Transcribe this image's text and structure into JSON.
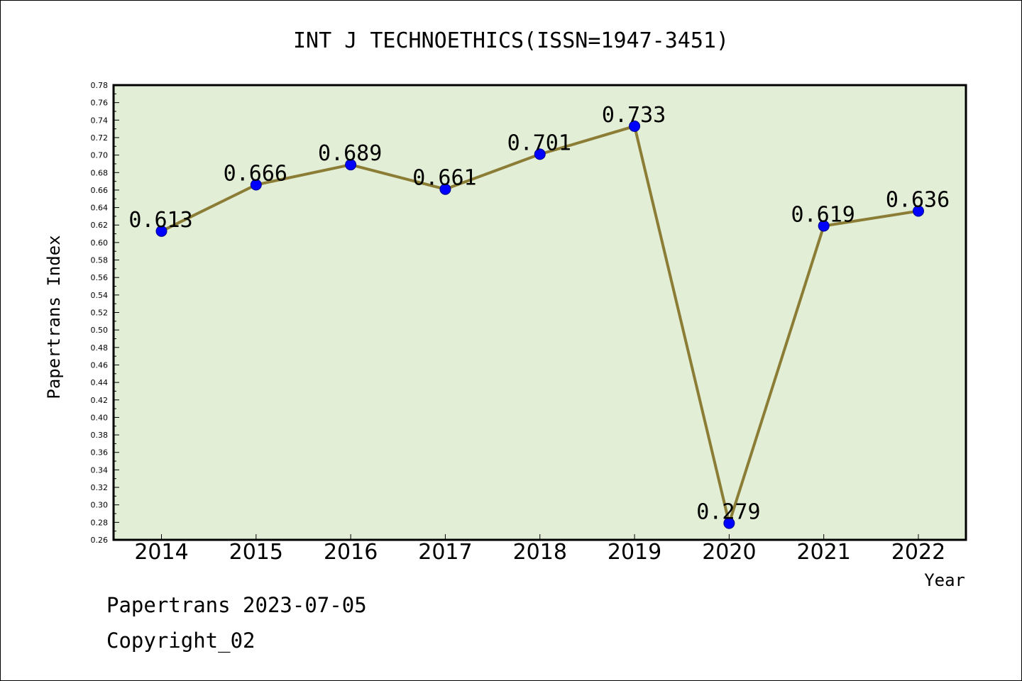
{
  "chart_data": {
    "type": "line",
    "title": "INT J TECHNOETHICS(ISSN=1947-3451)",
    "xlabel": "Year",
    "ylabel": "Papertrans Index",
    "categories": [
      "2014",
      "2015",
      "2016",
      "2017",
      "2018",
      "2019",
      "2020",
      "2021",
      "2022"
    ],
    "values": [
      0.613,
      0.666,
      0.689,
      0.661,
      0.701,
      0.733,
      0.279,
      0.619,
      0.636
    ],
    "data_labels": [
      "0.613",
      "0.666",
      "0.689",
      "0.661",
      "0.701",
      "0.733",
      "0.279",
      "0.619",
      "0.636"
    ],
    "ylim": [
      0.26,
      0.78
    ],
    "ytick_step": 0.02,
    "grid": false,
    "colors": {
      "plot_background": "#e2efd6",
      "line": "#8b7d35",
      "marker": "#0000ff"
    }
  },
  "footer": {
    "date_line": "Papertrans 2023-07-05",
    "copyright": "Copyright_02"
  }
}
